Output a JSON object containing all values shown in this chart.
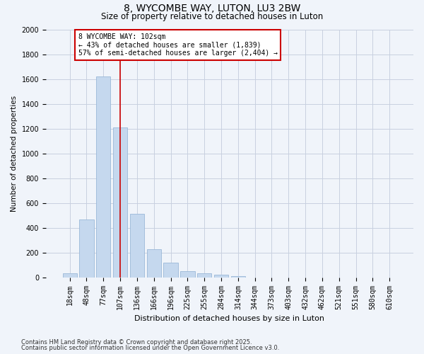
{
  "title1": "8, WYCOMBE WAY, LUTON, LU3 2BW",
  "title2": "Size of property relative to detached houses in Luton",
  "xlabel": "Distribution of detached houses by size in Luton",
  "ylabel": "Number of detached properties",
  "categories": [
    "18sqm",
    "48sqm",
    "77sqm",
    "107sqm",
    "136sqm",
    "166sqm",
    "196sqm",
    "225sqm",
    "255sqm",
    "284sqm",
    "314sqm",
    "344sqm",
    "373sqm",
    "403sqm",
    "432sqm",
    "462sqm",
    "521sqm",
    "551sqm",
    "580sqm",
    "610sqm"
  ],
  "values": [
    30,
    465,
    1620,
    1210,
    510,
    225,
    120,
    50,
    35,
    20,
    10,
    0,
    0,
    0,
    0,
    0,
    0,
    0,
    0,
    0
  ],
  "bar_color": "#c5d8ee",
  "bar_edge_color": "#9ab8d8",
  "vline_x_index": 3,
  "vline_color": "#cc0000",
  "annotation_text": "8 WYCOMBE WAY: 102sqm\n← 43% of detached houses are smaller (1,839)\n57% of semi-detached houses are larger (2,404) →",
  "annotation_box_color": "#ffffff",
  "annotation_box_edge": "#cc0000",
  "ylim": [
    0,
    2000
  ],
  "yticks": [
    0,
    200,
    400,
    600,
    800,
    1000,
    1200,
    1400,
    1600,
    1800,
    2000
  ],
  "footnote1": "Contains HM Land Registry data © Crown copyright and database right 2025.",
  "footnote2": "Contains public sector information licensed under the Open Government Licence v3.0.",
  "bg_color": "#f0f4fa",
  "grid_color": "#c8d0e0",
  "title1_fontsize": 10,
  "title2_fontsize": 8.5,
  "xlabel_fontsize": 8,
  "ylabel_fontsize": 7.5,
  "tick_fontsize": 7,
  "annotation_fontsize": 7,
  "footnote_fontsize": 6
}
